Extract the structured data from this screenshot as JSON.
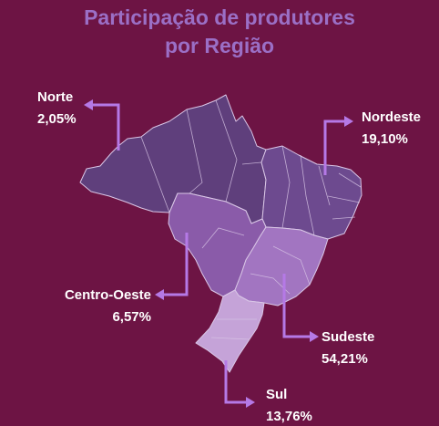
{
  "chart_data": {
    "type": "map",
    "title": [
      "Participação de produtores",
      "por Região"
    ],
    "categories": [
      "Norte",
      "Nordeste",
      "Centro-Oeste",
      "Sudeste",
      "Sul"
    ],
    "value_labels": [
      "2,05%",
      "19,10%",
      "6,57%",
      "54,21%",
      "13,76%"
    ],
    "values": [
      2.05,
      19.1,
      6.57,
      54.21,
      13.76
    ],
    "colors": {
      "background": "#6d1444",
      "title": "#9b6fc6",
      "callout": "#b579e6",
      "norte": "#5f3f7c",
      "nordeste": "#6d4a8f",
      "centro_oeste": "#8a5ba9",
      "sudeste": "#a275c1",
      "sul": "#c5a3d8",
      "borders": "#d9c6e6"
    }
  }
}
